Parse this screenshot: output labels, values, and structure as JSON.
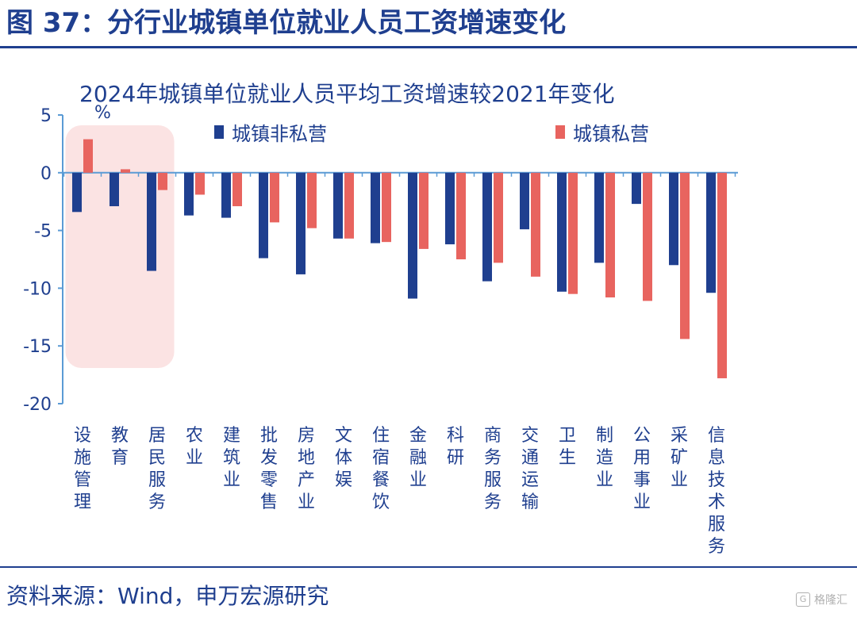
{
  "figure_title": "图 37：分行业城镇单位就业人员工资增速变化",
  "source": "资料来源：Wind，申万宏源研究",
  "watermark": {
    "text": "格隆汇",
    "icon": "watermark-logo-icon"
  },
  "highlight": {
    "color": "#fbe3e3",
    "categories_spanned": [
      "设施管理",
      "教育",
      "居民服务"
    ]
  },
  "colors": {
    "text": "#1f3f8f",
    "axis": "#5b9bd5",
    "non_private": "#1f3f8f",
    "private": "#e8645f"
  },
  "chart_data": {
    "type": "bar",
    "title": "2024年城镇单位就业人员平均工资增速较2021年变化",
    "ylabel": "%",
    "ylim": [
      -20,
      5
    ],
    "yticks": [
      5,
      0,
      -5,
      -10,
      -15,
      -20
    ],
    "ytick_labels": [
      "5",
      "0",
      "-5",
      "-10",
      "-15",
      "-20"
    ],
    "legend_position": "top",
    "categories": [
      "设施管理",
      "教育",
      "居民服务",
      "农业",
      "建筑业",
      "批发零售",
      "房地产业",
      "文体娱",
      "住宿餐饮",
      "金融业",
      "科研",
      "商务服务",
      "交通运输",
      "卫生",
      "制造业",
      "公用事业",
      "采矿业",
      "信息技术服务"
    ],
    "series": [
      {
        "name": "城镇非私营",
        "color": "#1f3f8f",
        "values": [
          -3.4,
          -2.9,
          -8.5,
          -3.7,
          -3.9,
          -7.4,
          -8.8,
          -5.7,
          -6.1,
          -10.9,
          -6.2,
          -9.4,
          -4.9,
          -10.3,
          -7.8,
          -2.7,
          -8.0,
          -10.4
        ]
      },
      {
        "name": "城镇私营",
        "color": "#e8645f",
        "values": [
          2.9,
          0.3,
          -1.5,
          -1.9,
          -2.9,
          -4.3,
          -4.8,
          -5.7,
          -6.0,
          -6.6,
          -7.5,
          -7.8,
          -9.0,
          -10.5,
          -10.8,
          -11.1,
          -14.4,
          -17.8
        ]
      }
    ]
  }
}
